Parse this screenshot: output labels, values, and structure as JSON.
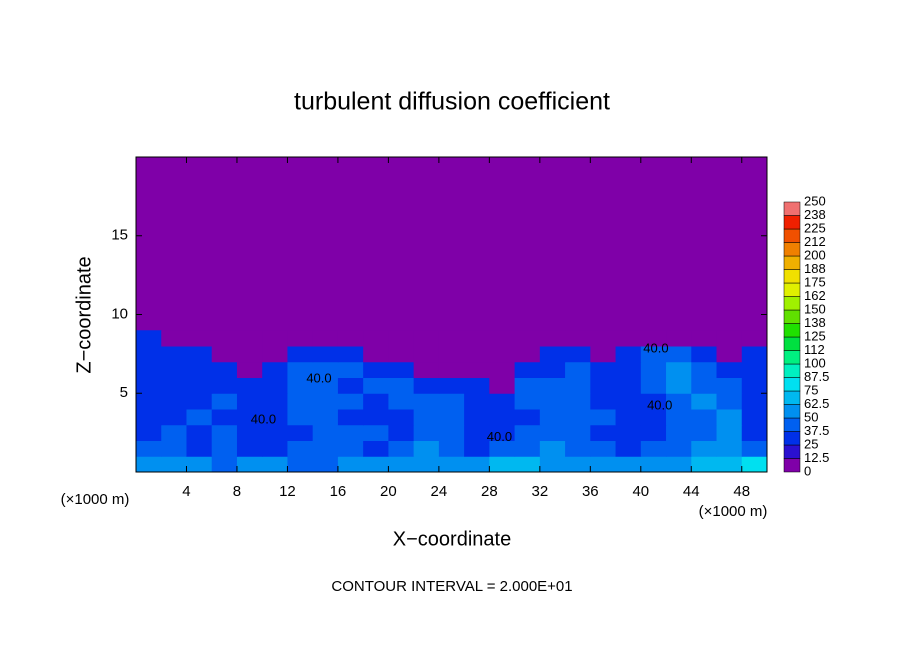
{
  "chart_data": {
    "type": "contour",
    "title": "turbulent diffusion coefficient",
    "xlabel": "X−coordinate",
    "ylabel": "Z−coordinate",
    "x_unit": "(×1000 m)",
    "footer": "CONTOUR INTERVAL = 2.000E+01",
    "xlim": [
      0,
      50
    ],
    "ylim": [
      0,
      20
    ],
    "xticks": [
      4,
      8,
      12,
      16,
      20,
      24,
      28,
      32,
      36,
      40,
      44,
      48
    ],
    "yticks": [
      5,
      10,
      15
    ],
    "x": [
      1,
      3,
      5,
      7,
      9,
      11,
      13,
      15,
      17,
      19,
      21,
      23,
      25,
      27,
      29,
      31,
      33,
      35,
      37,
      39,
      41,
      43,
      45,
      47,
      49
    ],
    "y": [
      0.5,
      1.5,
      2.5,
      3.5,
      4.5,
      5.5,
      6.5,
      7.5,
      8.5
    ],
    "values": [
      [
        60,
        55,
        50,
        45,
        50,
        55,
        45,
        40,
        50,
        55,
        60,
        60,
        55,
        50,
        65,
        65,
        60,
        60,
        55,
        50,
        55,
        60,
        65,
        70,
        75
      ],
      [
        40,
        45,
        35,
        40,
        30,
        35,
        40,
        45,
        40,
        35,
        45,
        50,
        40,
        35,
        40,
        45,
        50,
        45,
        40,
        35,
        40,
        45,
        50,
        55,
        40
      ],
      [
        35,
        40,
        30,
        45,
        35,
        30,
        35,
        40,
        45,
        40,
        35,
        45,
        40,
        30,
        35,
        40,
        45,
        40,
        35,
        30,
        35,
        40,
        45,
        50,
        35
      ],
      [
        30,
        35,
        40,
        35,
        30,
        35,
        40,
        45,
        35,
        30,
        35,
        40,
        45,
        35,
        30,
        35,
        40,
        45,
        40,
        35,
        30,
        40,
        45,
        50,
        35
      ],
      [
        35,
        30,
        35,
        40,
        30,
        30,
        40,
        45,
        40,
        35,
        40,
        45,
        40,
        35,
        30,
        40,
        45,
        40,
        35,
        30,
        35,
        45,
        50,
        45,
        30
      ],
      [
        30,
        35,
        30,
        35,
        30,
        35,
        45,
        40,
        35,
        40,
        45,
        35,
        30,
        35,
        5,
        40,
        45,
        40,
        35,
        30,
        40,
        50,
        45,
        40,
        30
      ],
      [
        30,
        30,
        35,
        30,
        5,
        30,
        40,
        45,
        40,
        35,
        30,
        5,
        5,
        5,
        5,
        30,
        35,
        40,
        35,
        30,
        45,
        50,
        40,
        35,
        30
      ],
      [
        30,
        30,
        30,
        5,
        5,
        5,
        30,
        35,
        30,
        5,
        5,
        5,
        5,
        5,
        5,
        5,
        30,
        30,
        5,
        35,
        40,
        45,
        35,
        5,
        30
      ],
      [
        30,
        5,
        5,
        5,
        5,
        5,
        5,
        5,
        5,
        5,
        5,
        5,
        5,
        5,
        5,
        5,
        5,
        5,
        5,
        5,
        5,
        5,
        5,
        5,
        5
      ]
    ],
    "levels": [
      0,
      12.5,
      25,
      37.5,
      50,
      62.5,
      75,
      87.5,
      100,
      112,
      125,
      138,
      150,
      162,
      175,
      188,
      200,
      212,
      225,
      238,
      250
    ],
    "colors": [
      "#7f00a8",
      "#2a10d0",
      "#0030e8",
      "#0060f0",
      "#0090f0",
      "#00b8f0",
      "#00e0f0",
      "#00f0c0",
      "#00f080",
      "#00e040",
      "#20e000",
      "#60e000",
      "#a0f000",
      "#e0f000",
      "#f0e000",
      "#f0b000",
      "#f08000",
      "#f05000",
      "#f02000",
      "#f07070"
    ],
    "contour_labels": [
      {
        "label": "40.0",
        "x": 10.1,
        "y": 3.3
      },
      {
        "label": "40.0",
        "x": 14.5,
        "y": 5.9
      },
      {
        "label": "40.0",
        "x": 28.8,
        "y": 2.2
      },
      {
        "label": "40.0",
        "x": 41.5,
        "y": 4.2
      },
      {
        "label": "40.0",
        "x": 41.2,
        "y": 7.8
      }
    ]
  }
}
